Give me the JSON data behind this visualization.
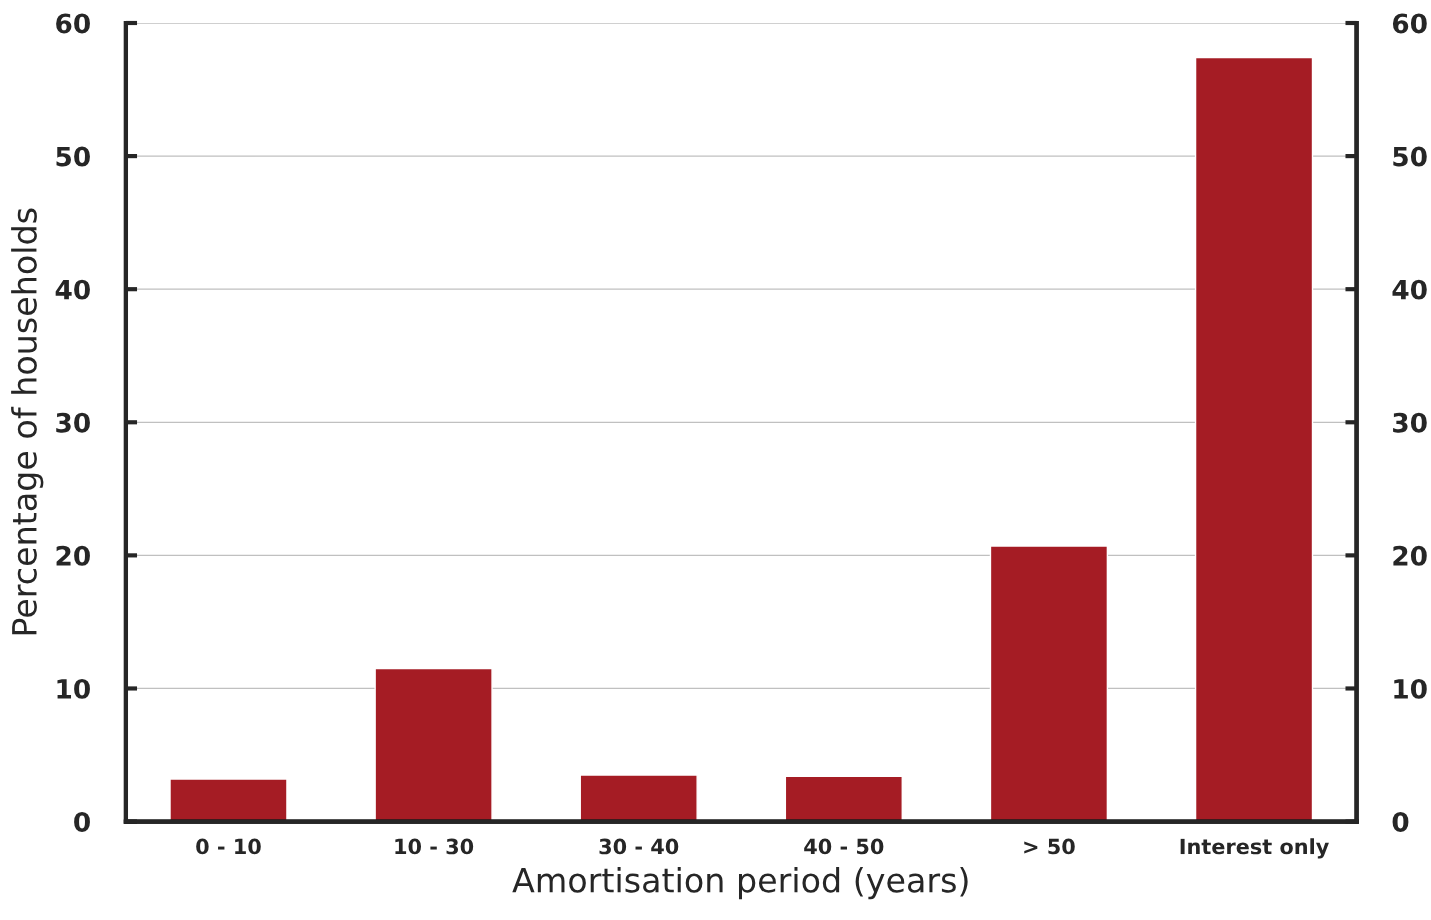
{
  "chart_data": {
    "type": "bar",
    "xlabel": "Amortisation period (years)",
    "ylabel": "Percentage of households",
    "categories": [
      "0 - 10",
      "10 - 30",
      "30 - 40",
      "40 - 50",
      "> 50",
      "Interest only"
    ],
    "values": [
      3.2,
      11.5,
      3.5,
      3.4,
      20.7,
      57.4
    ],
    "color": "#a51c24",
    "ylim": [
      0,
      60
    ],
    "yticks": [
      0,
      10,
      20,
      30,
      40,
      50,
      60
    ],
    "y2lim": [
      0,
      60
    ],
    "y2ticks": [
      0,
      10,
      20,
      30,
      40,
      50,
      60
    ],
    "grid": true,
    "legend": false
  }
}
